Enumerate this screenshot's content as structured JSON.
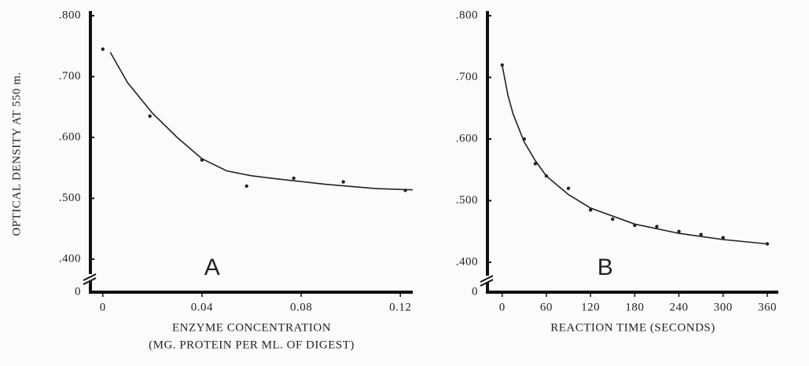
{
  "chart_data": [
    {
      "type": "scatter",
      "y_label": "OPTICAL DENSITY AT 550 m.",
      "x_label": [
        "ENZYME CONCENTRATION",
        "(MG. PROTEIN PER ML. OF DIGEST)"
      ],
      "annotation": "A",
      "xlim": [
        -0.005,
        0.125
      ],
      "xticks": [
        0,
        0.04,
        0.08,
        0.12
      ],
      "ylim": [
        0,
        0.8
      ],
      "yticks": [
        0,
        {
          "value": 0.4,
          "label": ".400"
        },
        {
          "value": 0.5,
          "label": ".500"
        },
        {
          "value": 0.6,
          "label": ".600"
        },
        {
          "value": 0.7,
          "label": ".700"
        },
        {
          "value": 0.8,
          "label": ".800"
        }
      ],
      "y_axis_break": true,
      "series": [
        {
          "mode": "markers",
          "color": "#222222",
          "x": [
            0,
            0.019,
            0.04,
            0.058,
            0.077,
            0.097,
            0.122
          ],
          "values": [
            0.745,
            0.635,
            0.563,
            0.52,
            0.533,
            0.527,
            0.513
          ]
        },
        {
          "mode": "line",
          "color": "#222222",
          "x": [
            0.003,
            0.01,
            0.02,
            0.03,
            0.04,
            0.05,
            0.06,
            0.07,
            0.09,
            0.11,
            0.125
          ],
          "values": [
            0.74,
            0.69,
            0.64,
            0.6,
            0.565,
            0.545,
            0.537,
            0.532,
            0.523,
            0.516,
            0.514
          ]
        }
      ]
    },
    {
      "type": "scatter",
      "x_label": [
        "REACTION TIME (SECONDS)"
      ],
      "annotation": "B",
      "xlim": [
        -20,
        375
      ],
      "xticks": [
        0,
        60,
        120,
        180,
        240,
        300,
        360
      ],
      "ylim": [
        0,
        0.8
      ],
      "yticks": [
        0,
        {
          "value": 0.4,
          "label": ".400"
        },
        {
          "value": 0.5,
          "label": ".500"
        },
        {
          "value": 0.6,
          "label": ".600"
        },
        {
          "value": 0.7,
          "label": ".700"
        },
        {
          "value": 0.8,
          "label": ".800"
        }
      ],
      "y_axis_break": true,
      "series": [
        {
          "mode": "markers",
          "color": "#222222",
          "x": [
            0,
            30,
            45,
            60,
            90,
            120,
            150,
            180,
            210,
            240,
            270,
            300,
            360
          ],
          "values": [
            0.72,
            0.6,
            0.56,
            0.54,
            0.52,
            0.485,
            0.47,
            0.46,
            0.458,
            0.45,
            0.445,
            0.44,
            0.43
          ]
        },
        {
          "mode": "line",
          "color": "#222222",
          "x": [
            0,
            8,
            15,
            30,
            45,
            60,
            90,
            120,
            180,
            240,
            300,
            360
          ],
          "values": [
            0.72,
            0.67,
            0.64,
            0.595,
            0.565,
            0.54,
            0.51,
            0.488,
            0.462,
            0.447,
            0.437,
            0.43
          ]
        }
      ]
    }
  ]
}
